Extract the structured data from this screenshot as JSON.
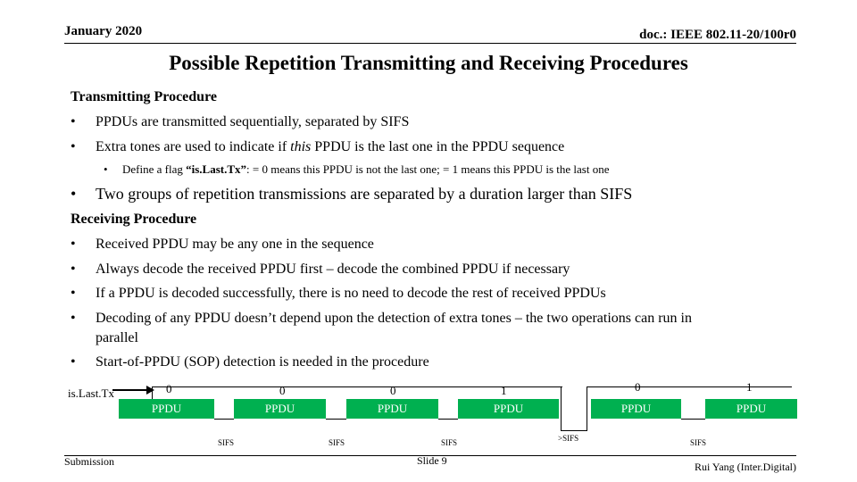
{
  "header": {
    "date": "January 2020",
    "doc_id": "doc.: IEEE 802.11-20/100r0"
  },
  "title": "Possible Repetition Transmitting and Receiving Procedures",
  "transmitting": {
    "heading": "Transmitting Procedure",
    "bullets": [
      "PPDUs are transmitted sequentially, separated by SIFS",
      "Extra tones are used to indicate if this PPDU is the last one in the PPDU sequence"
    ],
    "bullet2_parts": [
      "Extra tones are used to indicate if ",
      "this",
      " PPDU is the last one in the PPDU sequence"
    ],
    "sub_bullet_parts": [
      "Define a flag ",
      "“is.Last.Tx”",
      ": = 0 means this PPDU is not the last one; = 1 means this PPDU is the last one"
    ],
    "big_bullet": "Two groups of repetition transmissions are separated by a duration larger than SIFS"
  },
  "receiving": {
    "heading": "Receiving Procedure",
    "bullets": [
      "Received PPDU may be any one in the sequence",
      "Always decode the received PPDU first – decode the combined PPDU if necessary",
      "If a PPDU is decoded successfully, there is no need to decode the rest of received PPDUs",
      "Decoding of any PPDU doesn’t depend upon the detection of extra tones – the two operations can run in",
      "parallel",
      "Start-of-PPDU (SOP) detection is needed in the procedure"
    ]
  },
  "bullet_char": "•",
  "diagram": {
    "flag_label": "is.Last.Tx",
    "ppdus": [
      {
        "label": "PPDU",
        "flag": "0"
      },
      {
        "label": "PPDU",
        "flag": "0"
      },
      {
        "label": "PPDU",
        "flag": "0"
      },
      {
        "label": "PPDU",
        "flag": "1"
      },
      {
        "label": "PPDU",
        "flag": "0"
      },
      {
        "label": "PPDU",
        "flag": "1"
      }
    ],
    "gaps": [
      "SIFS",
      "SIFS",
      "SIFS",
      ">SIFS",
      "SIFS"
    ],
    "ppdu_color": "#00b050"
  },
  "footer": {
    "left": "Submission",
    "center": "Slide 9",
    "right": "Rui Yang (Inter.Digital)"
  }
}
